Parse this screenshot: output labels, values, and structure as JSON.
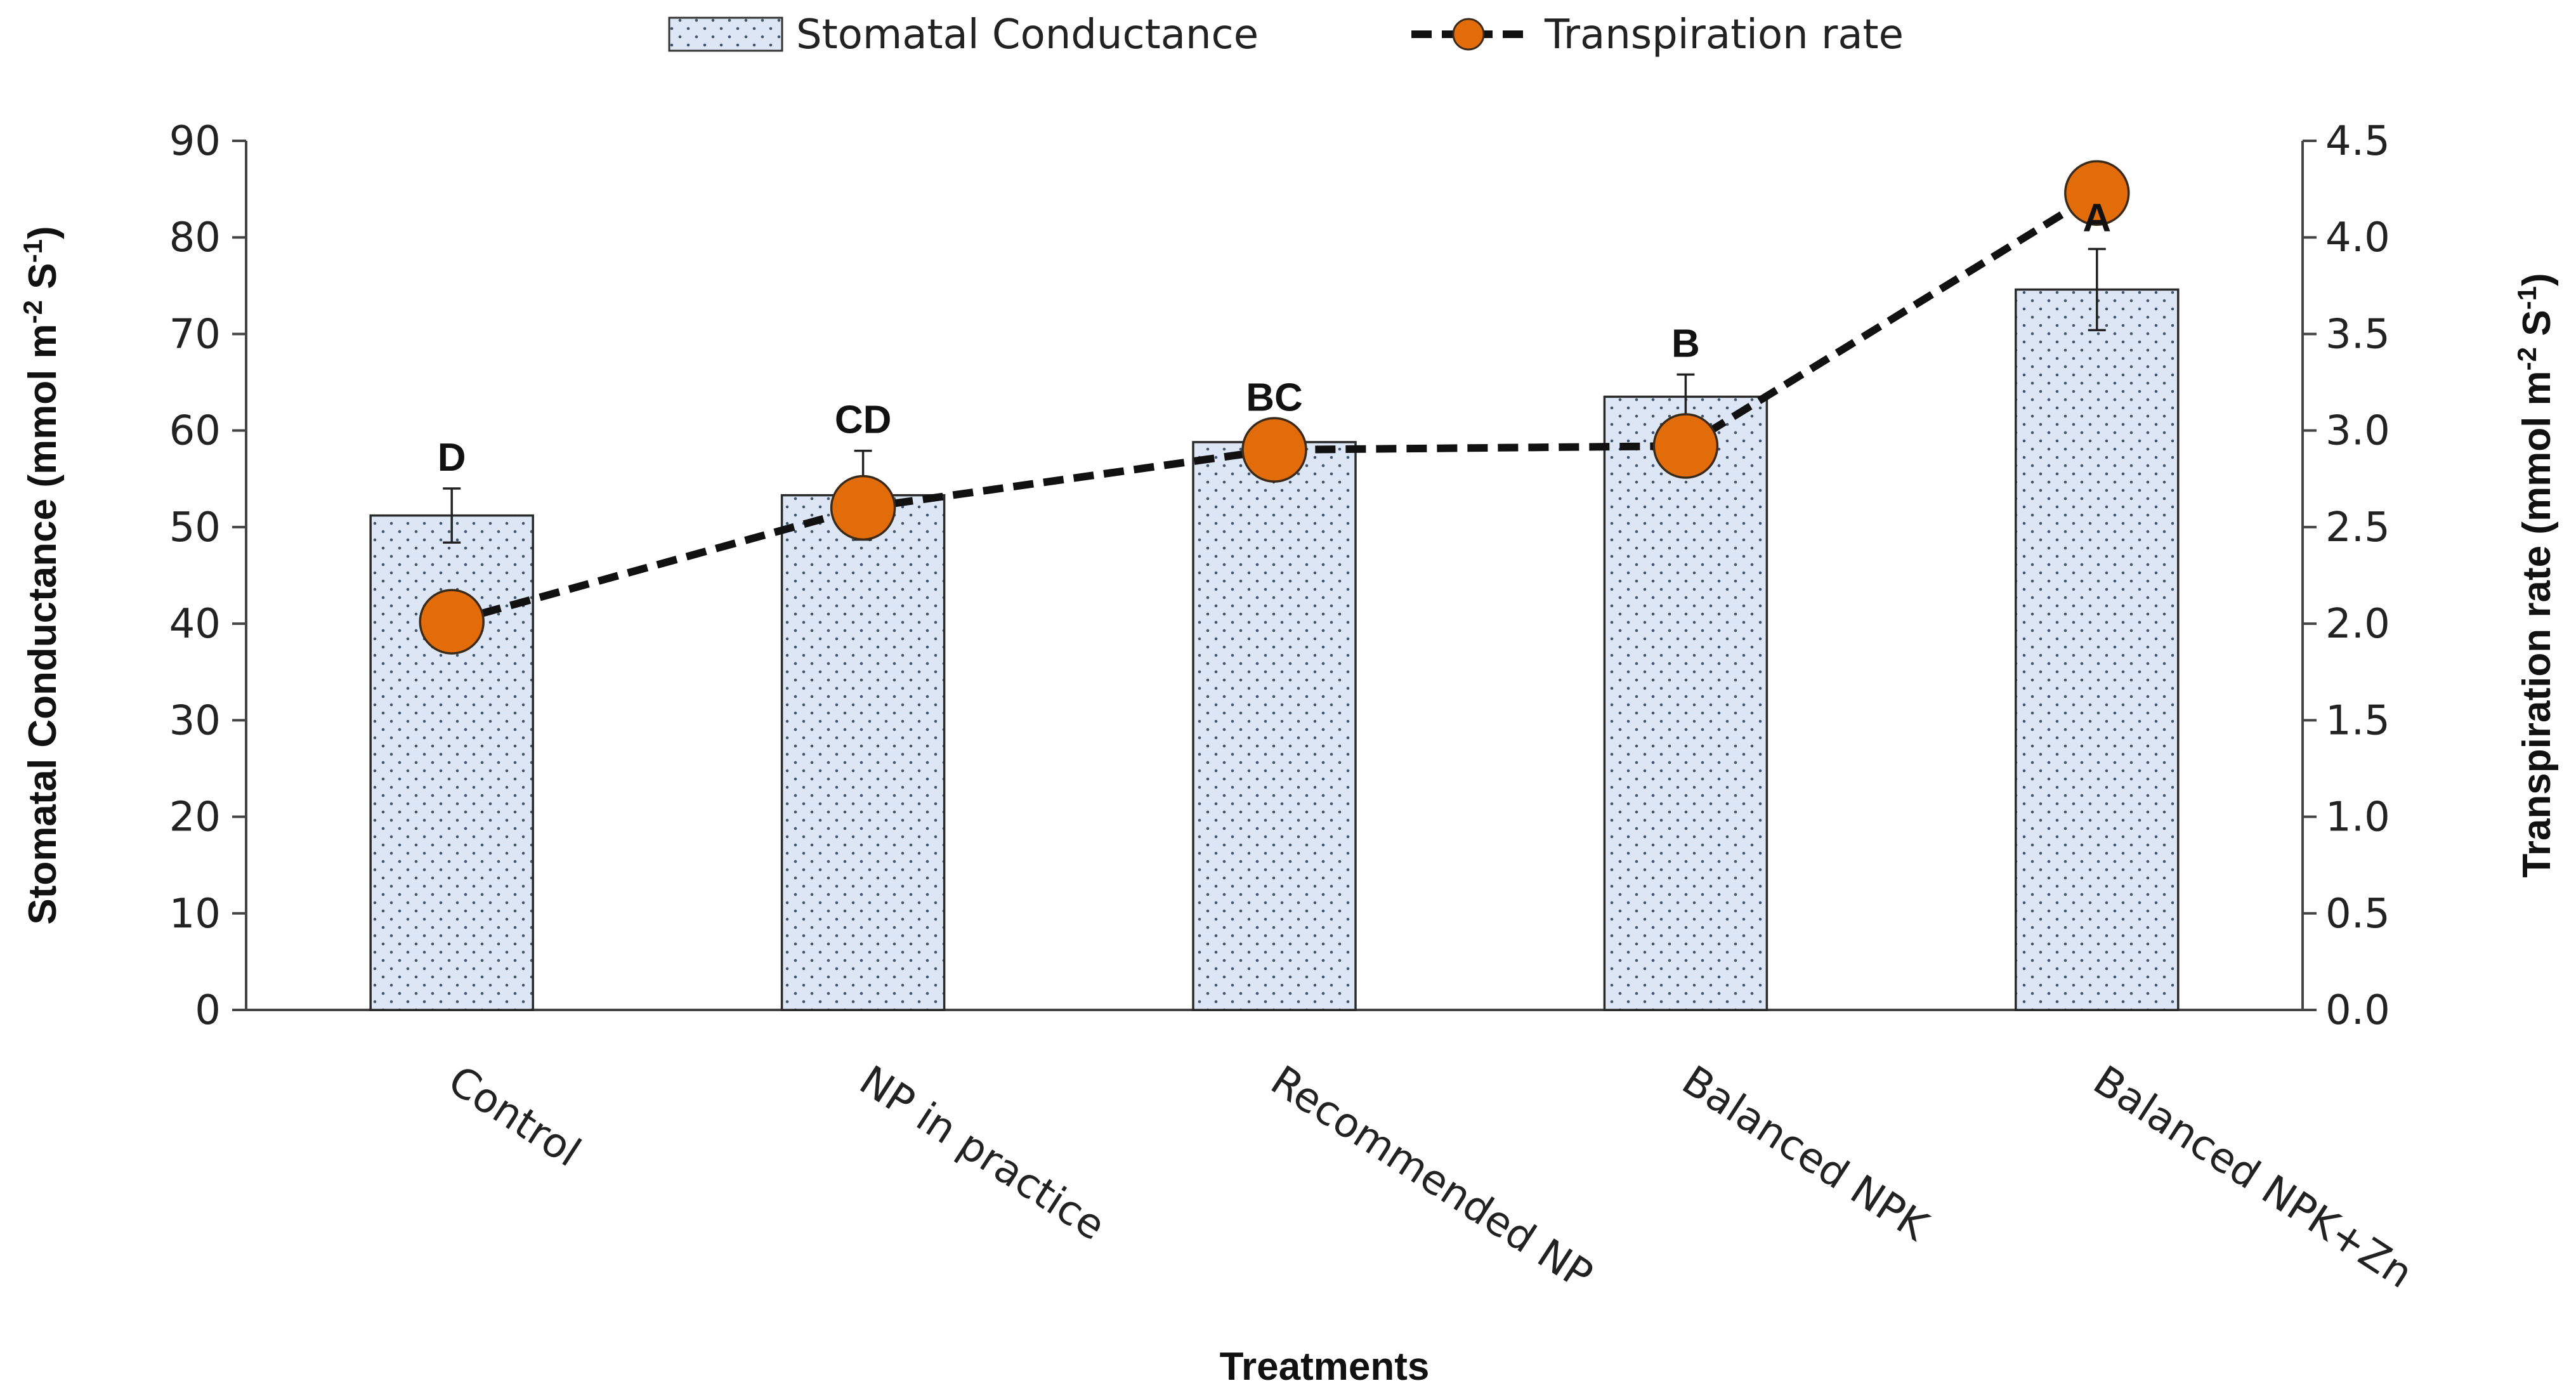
{
  "chart_data": {
    "type": "bar+line",
    "title": "",
    "categories": [
      "Control",
      "NP in practice",
      "Recommended NP",
      "Balanced NPK",
      "Balanced NPK+Zn"
    ],
    "series": [
      {
        "name": "Stomatal Conductance",
        "type": "bar",
        "axis": "left",
        "values": [
          51.2,
          53.3,
          58.8,
          63.5,
          74.6
        ],
        "error": [
          2.8,
          4.6,
          1.4,
          2.3,
          4.2
        ],
        "significance": [
          "D",
          "CD",
          "BC",
          "B",
          "A"
        ],
        "fill": "#dce6f5",
        "dot_color": "#445566"
      },
      {
        "name": "Transpiration rate",
        "type": "line",
        "axis": "right",
        "values": [
          2.01,
          2.6,
          2.9,
          2.92,
          4.23
        ],
        "line_style": "dashed",
        "marker_color": "#e36c0a",
        "line_color": "#111111"
      }
    ],
    "xlabel": "Treatments",
    "ylabel": {
      "main": "Stomatal Conductance (mmol m",
      "sup1": "-2",
      "mid": " S",
      "sup2": "-1",
      "end": ")"
    },
    "y2label": {
      "main": "Transpiration rate (mmol m",
      "sup1": "-2",
      "mid": " S",
      "sup2": "-1",
      "end": ")"
    },
    "ylim": [
      0,
      90
    ],
    "y_ticks": [
      0,
      10,
      20,
      30,
      40,
      50,
      60,
      70,
      80,
      90
    ],
    "y_tick_labels": [
      "0",
      "10",
      "20",
      "30",
      "40",
      "50",
      "60",
      "70",
      "80",
      "90"
    ],
    "y2lim": [
      0,
      4.5
    ],
    "y2_ticks": [
      0,
      0.5,
      1.0,
      1.5,
      2.0,
      2.5,
      3.0,
      3.5,
      4.0,
      4.5
    ],
    "y2_tick_labels": [
      "0.0",
      "0.5",
      "1.0",
      "1.5",
      "2.0",
      "2.5",
      "3.0",
      "3.5",
      "4.0",
      "4.5"
    ],
    "grid": false,
    "legend_position": "top-center"
  }
}
